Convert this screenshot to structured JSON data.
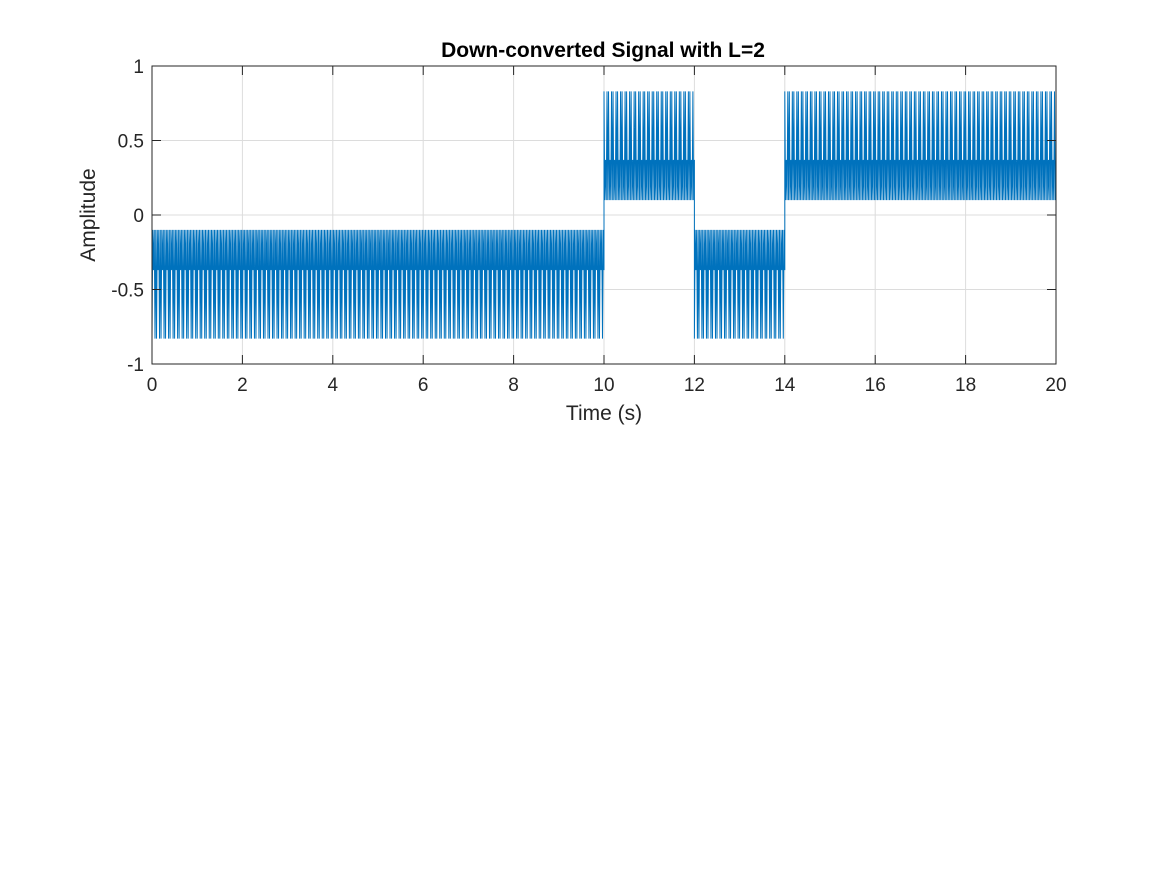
{
  "chart_data": {
    "type": "line",
    "title": "Down-converted Signal with L=2",
    "xlabel": "Time (s)",
    "ylabel": "Amplitude",
    "xlim": [
      0,
      20
    ],
    "ylim": [
      -1,
      1
    ],
    "xticks": [
      0,
      2,
      4,
      6,
      8,
      10,
      12,
      14,
      16,
      18,
      20
    ],
    "xtick_labels": [
      "0",
      "2",
      "4",
      "6",
      "8",
      "10",
      "12",
      "14",
      "16",
      "18",
      "20"
    ],
    "yticks": [
      -1,
      -0.5,
      0,
      0.5,
      1
    ],
    "ytick_labels": [
      "-1",
      "-0.5",
      "0",
      "0.5",
      "1"
    ],
    "grid": true,
    "series": [
      {
        "color": "#0072BD",
        "carrier_cycles_per_second": 10,
        "oscillation_levels": [
          0.1,
          0.37,
          0.83
        ],
        "segments": [
          {
            "x_start": 0,
            "x_end": 10,
            "sign": -1,
            "min": -0.83,
            "max": -0.1
          },
          {
            "x_start": 10,
            "x_end": 12,
            "sign": 1,
            "min": 0.1,
            "max": 0.83
          },
          {
            "x_start": 12,
            "x_end": 14,
            "sign": -1,
            "min": -0.83,
            "max": -0.1
          },
          {
            "x_start": 14,
            "x_end": 20,
            "sign": 1,
            "min": 0.1,
            "max": 0.83
          }
        ]
      }
    ]
  }
}
